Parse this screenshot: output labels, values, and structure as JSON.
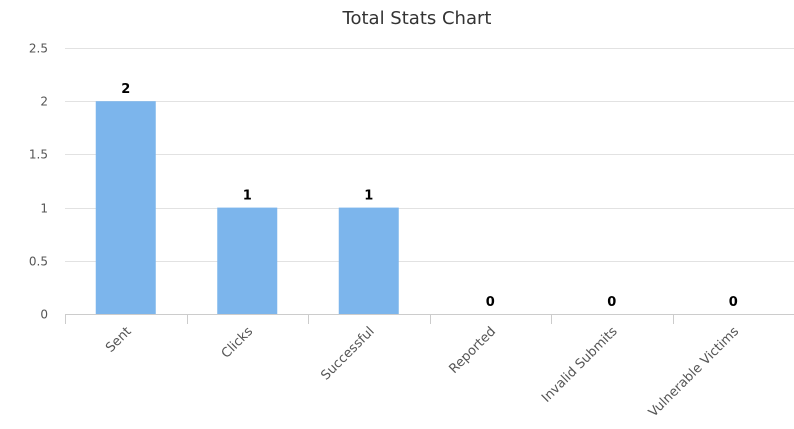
{
  "chart_data": {
    "type": "bar",
    "title": "Total Stats Chart",
    "categories": [
      "Sent",
      "Clicks",
      "Successful",
      "Reported",
      "Invalid Submits",
      "Vulnerable Victims"
    ],
    "values": [
      2,
      1,
      1,
      0,
      0,
      0
    ],
    "ylim": [
      0,
      2.5
    ],
    "yticks": [
      "0",
      "0.5",
      "1",
      "1.5",
      "2",
      "2.5"
    ],
    "xlabel": "",
    "ylabel": "",
    "grid": true,
    "legend": "none",
    "bar_color": "#7cb5ec"
  }
}
